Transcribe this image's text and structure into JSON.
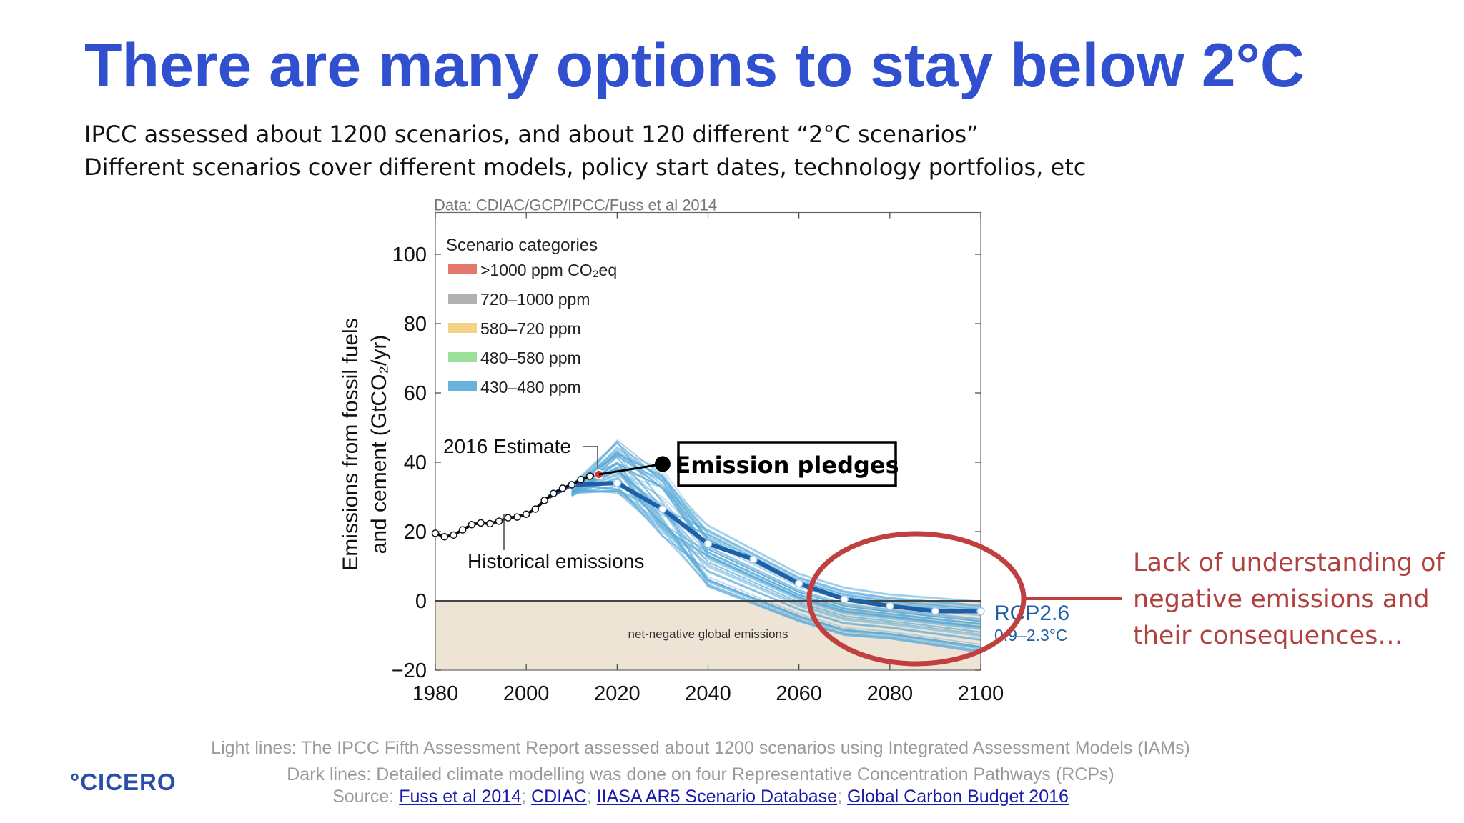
{
  "slide": {
    "title": "There are many options to stay below 2°C",
    "subtitle_lines": [
      "IPCC assessed about 1200 scenarios, and about 120 different “2°C scenarios”",
      "Different scenarios cover different models, policy start dates, technology portfolios, etc"
    ],
    "callout_lines": [
      "Lack of understanding of",
      "negative emissions and",
      "their consequences…"
    ],
    "notes": {
      "line1": "Light lines: The IPCC Fifth Assessment Report assessed about 1200 scenarios using Integrated Assessment Models (IAMs)",
      "line2": "Dark lines: Detailed climate modelling was done on four Representative Concentration Pathways (RCPs)",
      "source_label": "Source: ",
      "sources": [
        "Fuss et al 2014",
        "CDIAC",
        "IIASA AR5 Scenario Database",
        "Global Carbon Budget 2016"
      ],
      "separator": "; "
    },
    "logo": "°CICERO",
    "colors": {
      "title": "#3050d0",
      "callout": "#b0413e",
      "rcp": "#1f5fa8",
      "ensemble": "#5aaad8",
      "negative_band": "#ede4d6",
      "circle": "#c04040"
    }
  },
  "chart_data": {
    "type": "line",
    "credit": "Data: CDIAC/GCP/IPCC/Fuss et al 2014",
    "ylabel_line1": "Emissions from fossil fuels",
    "ylabel_line2": "and cement (GtCO₂/yr)",
    "xlabel": "",
    "xlim": [
      1980,
      2100
    ],
    "ylim": [
      -20,
      110
    ],
    "xticks": [
      1980,
      2000,
      2020,
      2040,
      2060,
      2080,
      2100
    ],
    "yticks": [
      -20,
      0,
      20,
      40,
      60,
      80,
      100
    ],
    "ytick_labels": [
      "−20",
      "0",
      "20",
      "40",
      "60",
      "80",
      "100"
    ],
    "grid": false,
    "legend_position": "top-left",
    "legend_title": "Scenario categories",
    "legend": [
      {
        "label": ">1000 ppm CO₂eq",
        "color": "#e06a5a"
      },
      {
        "label": "720–1000 ppm",
        "color": "#a8a8a8"
      },
      {
        "label": "580–720 ppm",
        "color": "#f2cf7a"
      },
      {
        "label": "480–580 ppm",
        "color": "#8fdc8f"
      },
      {
        "label": "430–480 ppm",
        "color": "#5aaad8"
      }
    ],
    "negative_region_label": "net-negative global emissions",
    "series": [
      {
        "name": "Historical emissions",
        "x": [
          1980,
          1982,
          1984,
          1986,
          1988,
          1990,
          1992,
          1994,
          1996,
          1998,
          2000,
          2002,
          2004,
          2006,
          2008,
          2010,
          2012,
          2014,
          2016
        ],
        "y": [
          19.5,
          18.5,
          19,
          20.5,
          22,
          22.5,
          22.3,
          23,
          24,
          24.2,
          25,
          26.5,
          29,
          31,
          32.5,
          33.5,
          35,
          36,
          36.5
        ]
      },
      {
        "name": "RCP2.6",
        "x": [
          2005,
          2010,
          2020,
          2030,
          2040,
          2050,
          2060,
          2070,
          2080,
          2090,
          2100
        ],
        "y": [
          30,
          33.5,
          34,
          26.5,
          16.5,
          12,
          5,
          0.5,
          -1.5,
          -3,
          -3
        ]
      },
      {
        "name": "Emission pledges",
        "x": [
          2016,
          2030
        ],
        "y": [
          36.5,
          39.5
        ]
      }
    ],
    "annotations": {
      "estimate": "2016 Estimate",
      "historical": "Historical emissions",
      "pledges": "Emission pledges",
      "rcp_label": "RCP2.6",
      "rcp_range": "0.9–2.3°C"
    }
  }
}
